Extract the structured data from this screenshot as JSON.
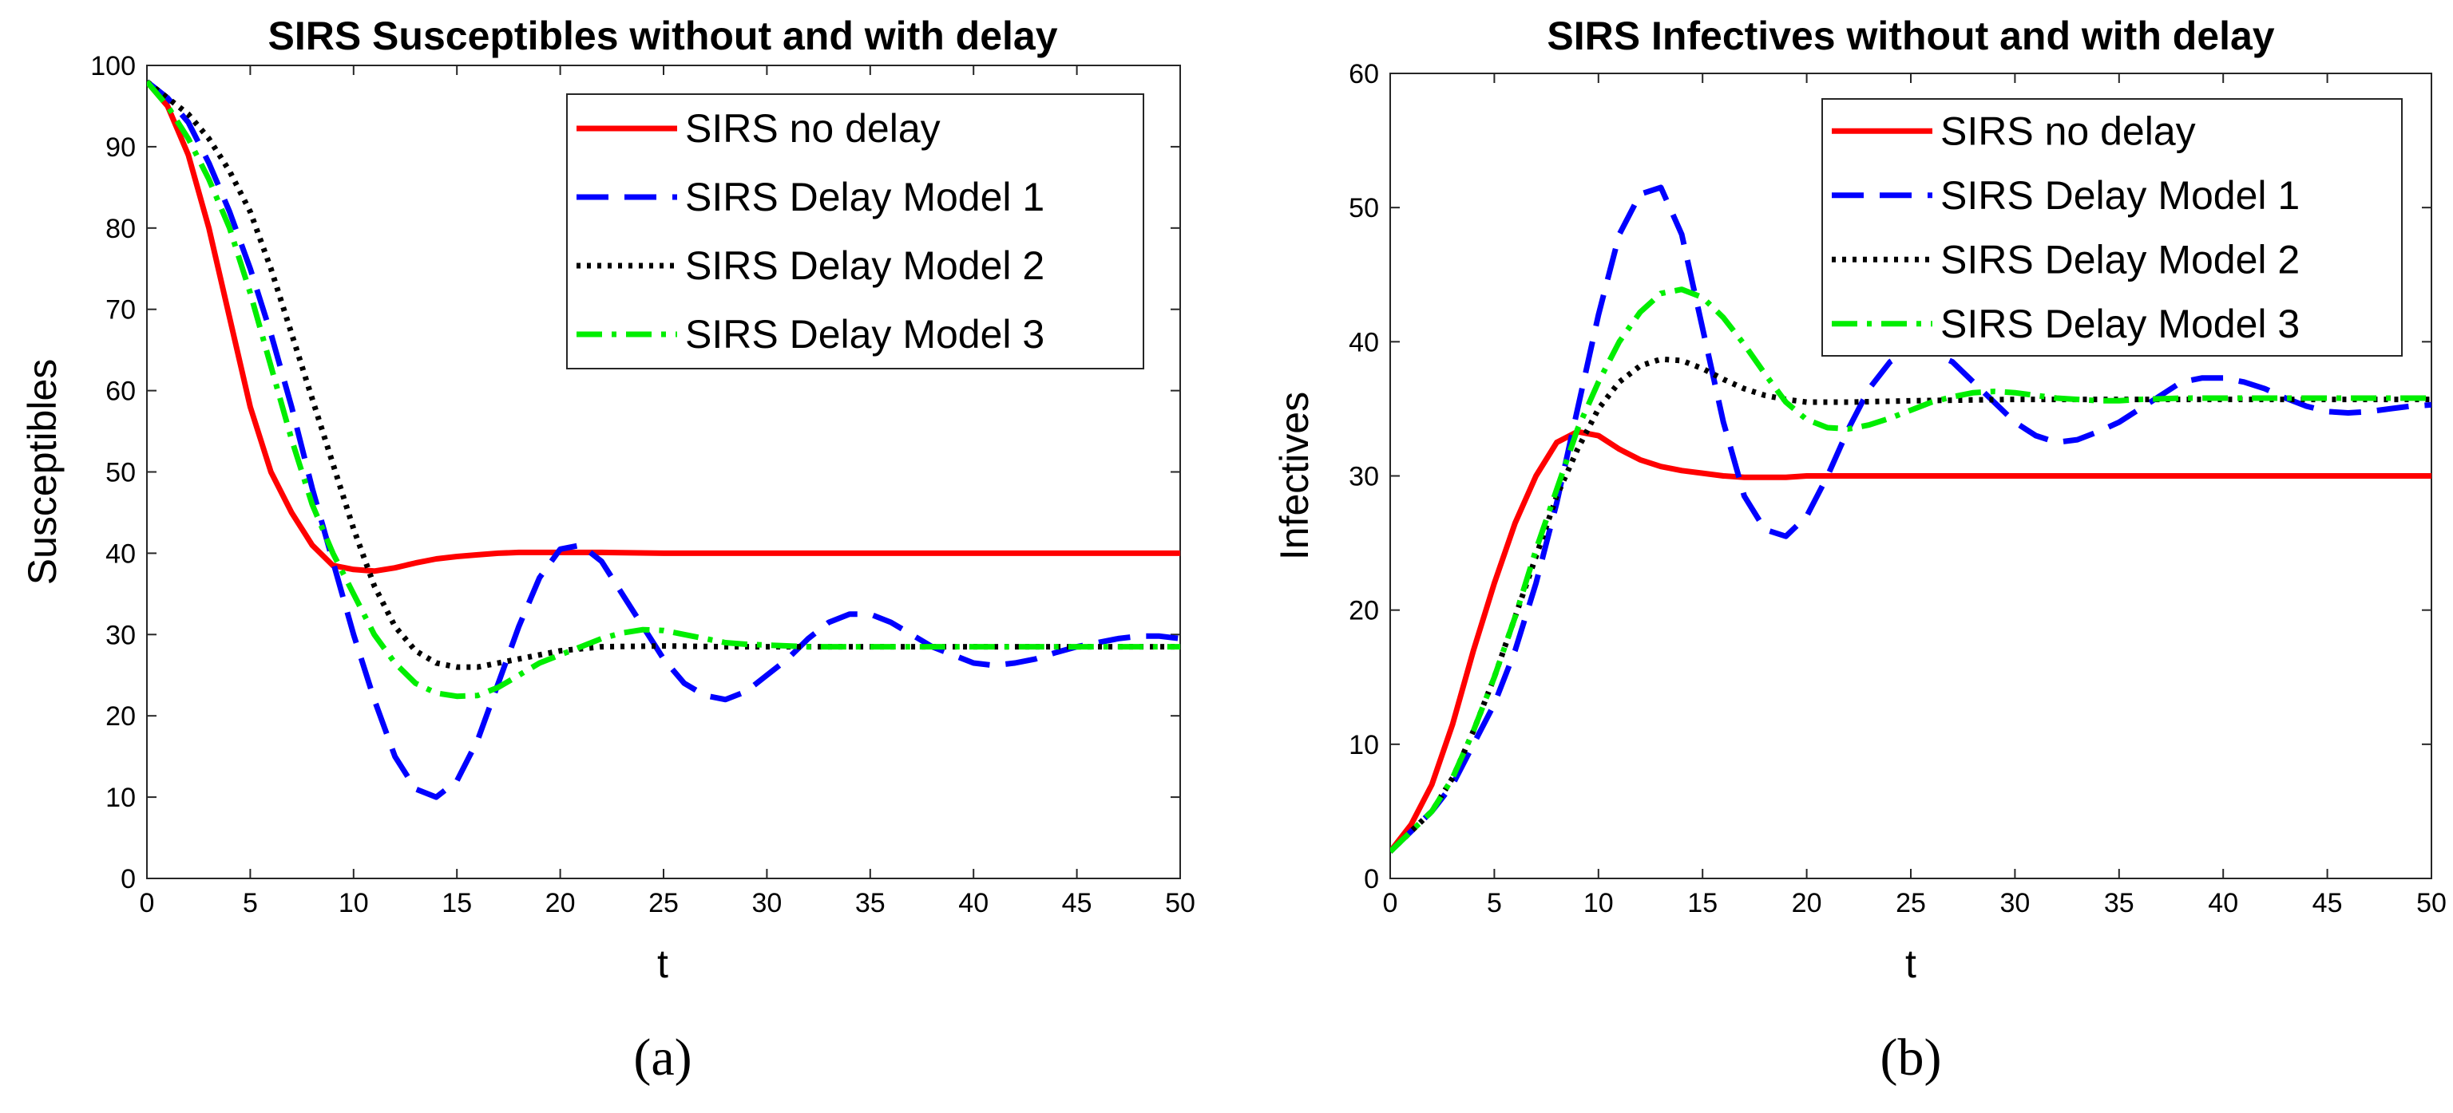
{
  "chart_data": [
    {
      "type": "line",
      "title": "SIRS Susceptibles without and with delay",
      "xlabel": "t",
      "ylabel": "Susceptibles",
      "panel_label": "(a)",
      "xlim": [
        0,
        50
      ],
      "ylim": [
        0,
        100
      ],
      "xticks": [
        0,
        5,
        10,
        15,
        20,
        25,
        30,
        35,
        40,
        45,
        50
      ],
      "yticks": [
        0,
        10,
        20,
        30,
        40,
        50,
        60,
        70,
        80,
        90,
        100
      ],
      "legend_position": "top-right",
      "series": [
        {
          "name": "SIRS no delay",
          "color": "#ff0000",
          "style": "solid",
          "x": [
            0,
            1,
            2,
            3,
            4,
            5,
            6,
            7,
            8,
            9,
            10,
            11,
            12,
            13,
            14,
            15,
            16,
            17,
            18,
            19,
            20,
            22,
            25,
            28,
            30,
            35,
            40,
            45,
            50
          ],
          "y": [
            98,
            95,
            89,
            80,
            69,
            58,
            50,
            45,
            41,
            38.5,
            38,
            37.8,
            38.2,
            38.8,
            39.3,
            39.6,
            39.8,
            40,
            40.1,
            40.1,
            40.1,
            40.1,
            40,
            40,
            40,
            40,
            40,
            40,
            40
          ]
        },
        {
          "name": "SIRS Delay Model 1",
          "color": "#0000ff",
          "style": "dash",
          "x": [
            0,
            1,
            2,
            3,
            4,
            5,
            6,
            7,
            8,
            9,
            10,
            11,
            12,
            13,
            14,
            15,
            16,
            17,
            18,
            19,
            20,
            21,
            22,
            23,
            24,
            25,
            26,
            27,
            28,
            29,
            30,
            31,
            32,
            33,
            34,
            35,
            36,
            37,
            38,
            39,
            40,
            41,
            42,
            43,
            44,
            45,
            46,
            47,
            48,
            49,
            50
          ],
          "y": [
            98,
            96,
            93,
            88,
            82,
            75,
            67,
            58,
            48,
            39,
            30,
            22,
            15,
            11,
            10,
            12,
            17,
            24,
            31,
            37,
            40.5,
            41,
            39,
            35,
            31,
            27,
            24,
            22.5,
            22,
            23,
            25,
            27,
            29.5,
            31.5,
            32.5,
            32.5,
            31.5,
            30,
            28.5,
            27.5,
            26.5,
            26.2,
            26.5,
            27,
            27.8,
            28.5,
            29,
            29.5,
            29.8,
            29.8,
            29.5
          ]
        },
        {
          "name": "SIRS Delay Model 2",
          "color": "#000000",
          "style": "dot",
          "x": [
            0,
            1,
            2,
            3,
            4,
            5,
            6,
            7,
            8,
            9,
            10,
            11,
            12,
            13,
            14,
            15,
            16,
            17,
            18,
            19,
            20,
            22,
            25,
            28,
            30,
            35,
            40,
            45,
            50
          ],
          "y": [
            98,
            96,
            94,
            91,
            87,
            82,
            75,
            67,
            59,
            51,
            43,
            36,
            31,
            28,
            26.5,
            26,
            26,
            26.5,
            27,
            27.5,
            28,
            28.5,
            28.6,
            28.5,
            28.5,
            28.5,
            28.5,
            28.5,
            28.5
          ]
        },
        {
          "name": "SIRS Delay Model 3",
          "color": "#00ee00",
          "style": "dashdot",
          "x": [
            0,
            1,
            2,
            3,
            4,
            5,
            6,
            7,
            8,
            9,
            10,
            11,
            12,
            13,
            14,
            15,
            16,
            17,
            18,
            19,
            20,
            21,
            22,
            23,
            24,
            25,
            26,
            27,
            28,
            29,
            30,
            32,
            35,
            40,
            45,
            50
          ],
          "y": [
            98,
            95,
            91,
            86,
            80,
            72,
            63,
            54,
            46,
            40,
            35,
            30,
            26.5,
            24,
            22.8,
            22.4,
            22.5,
            23.5,
            25,
            26.5,
            27.5,
            28.5,
            29.5,
            30.2,
            30.6,
            30.5,
            30,
            29.5,
            29,
            28.8,
            28.7,
            28.5,
            28.5,
            28.5,
            28.5,
            28.5
          ]
        }
      ]
    },
    {
      "type": "line",
      "title": "SIRS Infectives without and with delay",
      "xlabel": "t",
      "ylabel": "Infectives",
      "panel_label": "(b)",
      "xlim": [
        0,
        50
      ],
      "ylim": [
        0,
        60
      ],
      "xticks": [
        0,
        5,
        10,
        15,
        20,
        25,
        30,
        35,
        40,
        45,
        50
      ],
      "yticks": [
        0,
        10,
        20,
        30,
        40,
        50,
        60
      ],
      "legend_position": "top-right",
      "series": [
        {
          "name": "SIRS no delay",
          "color": "#ff0000",
          "style": "solid",
          "x": [
            0,
            1,
            2,
            3,
            4,
            5,
            6,
            7,
            8,
            9,
            10,
            11,
            12,
            13,
            14,
            15,
            16,
            17,
            18,
            19,
            20,
            22,
            25,
            30,
            35,
            40,
            45,
            50
          ],
          "y": [
            2,
            4,
            7,
            11.5,
            17,
            22,
            26.5,
            30,
            32.5,
            33.3,
            33,
            32,
            31.2,
            30.7,
            30.4,
            30.2,
            30,
            29.9,
            29.9,
            29.9,
            30,
            30,
            30,
            30,
            30,
            30,
            30,
            30
          ]
        },
        {
          "name": "SIRS Delay Model 1",
          "color": "#0000ff",
          "style": "dash",
          "x": [
            0,
            1,
            2,
            3,
            4,
            5,
            6,
            7,
            8,
            9,
            10,
            11,
            12,
            13,
            14,
            15,
            16,
            17,
            18,
            19,
            20,
            21,
            22,
            23,
            24,
            25,
            26,
            27,
            28,
            29,
            30,
            31,
            32,
            33,
            34,
            35,
            36,
            37,
            38,
            39,
            40,
            41,
            42,
            43,
            44,
            45,
            46,
            47,
            48,
            49,
            50
          ],
          "y": [
            2,
            3.5,
            5,
            7,
            10,
            13,
            17,
            22,
            28,
            35,
            42,
            48,
            51,
            51.5,
            48,
            41,
            34,
            28.5,
            26,
            25.5,
            27,
            30,
            33.5,
            36.5,
            38.5,
            39.5,
            39.2,
            38.5,
            37,
            35.5,
            34,
            33,
            32.5,
            32.7,
            33.3,
            34,
            35,
            36,
            37,
            37.3,
            37.3,
            37,
            36.5,
            35.8,
            35.2,
            34.8,
            34.7,
            34.8,
            35,
            35.2,
            35.3
          ]
        },
        {
          "name": "SIRS Delay Model 2",
          "color": "#000000",
          "style": "dot",
          "x": [
            0,
            1,
            2,
            3,
            4,
            5,
            6,
            7,
            8,
            9,
            10,
            11,
            12,
            13,
            14,
            15,
            16,
            17,
            18,
            19,
            20,
            21,
            22,
            25,
            30,
            35,
            40,
            45,
            50
          ],
          "y": [
            2,
            3.5,
            5,
            7.5,
            11,
            15,
            19.5,
            24,
            28.5,
            32,
            35,
            37,
            38.2,
            38.7,
            38.6,
            38,
            37.2,
            36.5,
            36,
            35.7,
            35.5,
            35.5,
            35.5,
            35.6,
            35.7,
            35.7,
            35.7,
            35.7,
            35.7
          ]
        },
        {
          "name": "SIRS Delay Model 3",
          "color": "#00ee00",
          "style": "dashdot",
          "x": [
            0,
            1,
            2,
            3,
            4,
            5,
            6,
            7,
            8,
            9,
            10,
            11,
            12,
            13,
            14,
            15,
            16,
            17,
            18,
            19,
            20,
            21,
            22,
            23,
            24,
            25,
            26,
            27,
            28,
            29,
            30,
            31,
            32,
            33,
            34,
            35,
            36,
            38,
            40,
            45,
            50
          ],
          "y": [
            2,
            3.5,
            5,
            7.5,
            11,
            15,
            19.5,
            24.5,
            29,
            33.5,
            37,
            40,
            42.2,
            43.6,
            43.9,
            43.3,
            41.8,
            39.8,
            37.6,
            35.5,
            34.2,
            33.6,
            33.5,
            33.8,
            34.3,
            34.9,
            35.5,
            35.9,
            36.2,
            36.3,
            36.2,
            36,
            35.8,
            35.7,
            35.6,
            35.6,
            35.7,
            35.8,
            35.8,
            35.8,
            35.8
          ]
        }
      ]
    }
  ]
}
